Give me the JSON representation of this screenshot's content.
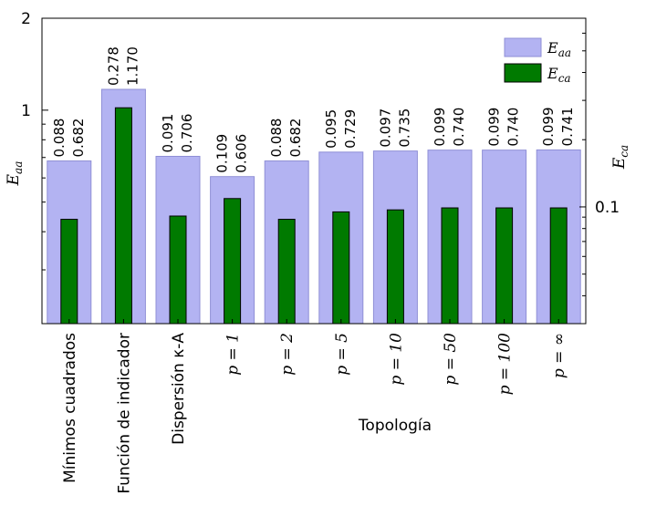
{
  "chart_data": {
    "type": "bar",
    "categories": [
      "Mínimos cuadrados",
      "Función de indicador",
      "Dispersión κ-A",
      "p = 1",
      "p = 2",
      "p = 5",
      "p = 10",
      "p = 50",
      "p = 100",
      "p = ∞"
    ],
    "categories_math": [
      false,
      false,
      false,
      true,
      true,
      true,
      true,
      true,
      true,
      true
    ],
    "series": [
      {
        "name": "E_aa",
        "label_main": "E",
        "label_sub": "aa",
        "axis": "left",
        "color": "#b3b3f2",
        "edge_color": "#8f8fd6",
        "values": [
          0.682,
          1.17,
          0.706,
          0.606,
          0.682,
          0.729,
          0.735,
          0.74,
          0.74,
          0.741
        ],
        "value_labels": [
          "0.682",
          "1.170",
          "0.706",
          "0.606",
          "0.682",
          "0.729",
          "0.735",
          "0.740",
          "0.740",
          "0.741"
        ]
      },
      {
        "name": "E_ca",
        "label_main": "E",
        "label_sub": "ca",
        "axis": "right",
        "color": "#007a00",
        "edge_color": "#000000",
        "values": [
          0.088,
          0.278,
          0.091,
          0.109,
          0.088,
          0.095,
          0.097,
          0.099,
          0.099,
          0.099
        ],
        "value_labels": [
          "0.088",
          "0.278",
          "0.091",
          "0.109",
          "0.088",
          "0.095",
          "0.097",
          "0.099",
          "0.099",
          "0.099"
        ]
      }
    ],
    "xlabel": "Topología",
    "ylabel_left": {
      "main": "E",
      "sub": "aa"
    },
    "ylabel_right": {
      "main": "E",
      "sub": "ca"
    },
    "ylim_left": [
      0.2,
      2
    ],
    "yscale_left": "log",
    "yticks_left": [
      "1",
      "2"
    ],
    "ylim_right": [
      0.03,
      0.7
    ],
    "yscale_right": "log",
    "yticks_right": [
      "0.1"
    ],
    "legend_position": "top-right"
  }
}
